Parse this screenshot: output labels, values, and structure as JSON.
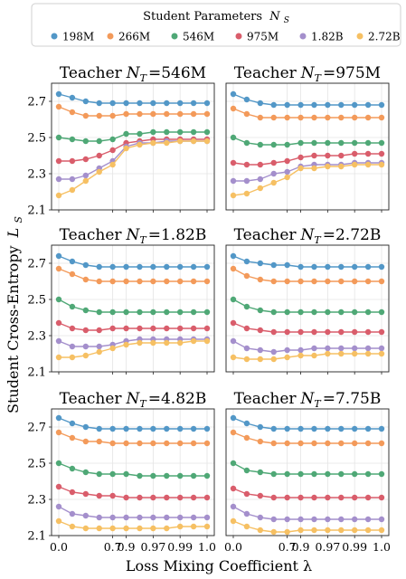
{
  "legend": {
    "title_prefix": "Student Parameters",
    "title_symbol": "N",
    "title_sub": "S",
    "placement": "top-center"
  },
  "ylabel_prefix": "Student Cross-Entropy",
  "ylabel_symbol": "L",
  "ylabel_sub": "S",
  "xlabel": "Loss Mixing Coefficient λ",
  "chart_data": {
    "type": "line",
    "grid": true,
    "x_categories": [
      "0.0",
      "0.1",
      "0.3",
      "0.5",
      "0.7",
      "0.9",
      "0.95",
      "0.97",
      "0.98",
      "0.99",
      "0.999",
      "1.0"
    ],
    "x_tick_labels": [
      "0.0",
      "0.7",
      "0.9",
      "0.97",
      "0.99",
      "1.0"
    ],
    "x_tick_indices": [
      0,
      4,
      5,
      7,
      9,
      11
    ],
    "ylim": [
      2.1,
      2.8
    ],
    "yticks": [
      "2.1",
      "2.3",
      "2.5",
      "2.7"
    ],
    "series_names": [
      "198M",
      "266M",
      "546M",
      "975M",
      "1.82B",
      "2.72B"
    ],
    "series_colors": [
      "#5297c7",
      "#f39a5a",
      "#4fa876",
      "#d95d6b",
      "#a48fcc",
      "#f6c063"
    ],
    "panels": [
      {
        "title_prefix": "Teacher",
        "title_symbol": "N",
        "title_sub": "T",
        "title_value": "=546M",
        "series": [
          [
            2.74,
            2.72,
            2.7,
            2.69,
            2.69,
            2.69,
            2.69,
            2.69,
            2.69,
            2.69,
            2.69,
            2.69
          ],
          [
            2.67,
            2.64,
            2.62,
            2.62,
            2.62,
            2.63,
            2.63,
            2.63,
            2.63,
            2.63,
            2.63,
            2.63
          ],
          [
            2.5,
            2.49,
            2.48,
            2.48,
            2.49,
            2.52,
            2.52,
            2.53,
            2.53,
            2.53,
            2.53,
            2.53
          ],
          [
            2.37,
            2.37,
            2.38,
            2.4,
            2.43,
            2.47,
            2.48,
            2.49,
            2.49,
            2.49,
            2.49,
            2.49
          ],
          [
            2.27,
            2.27,
            2.29,
            2.33,
            2.37,
            2.45,
            2.47,
            2.47,
            2.48,
            2.48,
            2.48,
            2.48
          ],
          [
            2.18,
            2.21,
            2.26,
            2.31,
            2.35,
            2.44,
            2.46,
            2.47,
            2.47,
            2.48,
            2.48,
            2.48
          ]
        ]
      },
      {
        "title_prefix": "Teacher",
        "title_symbol": "N",
        "title_sub": "T",
        "title_value": "=975M",
        "series": [
          [
            2.74,
            2.71,
            2.69,
            2.68,
            2.68,
            2.68,
            2.68,
            2.68,
            2.68,
            2.68,
            2.68,
            2.68
          ],
          [
            2.66,
            2.63,
            2.61,
            2.61,
            2.61,
            2.61,
            2.61,
            2.61,
            2.61,
            2.61,
            2.61,
            2.61
          ],
          [
            2.5,
            2.47,
            2.46,
            2.46,
            2.46,
            2.47,
            2.47,
            2.47,
            2.47,
            2.47,
            2.47,
            2.47
          ],
          [
            2.36,
            2.35,
            2.35,
            2.36,
            2.37,
            2.39,
            2.4,
            2.4,
            2.4,
            2.41,
            2.41,
            2.41
          ],
          [
            2.26,
            2.26,
            2.27,
            2.3,
            2.31,
            2.34,
            2.35,
            2.35,
            2.35,
            2.36,
            2.36,
            2.36
          ],
          [
            2.18,
            2.19,
            2.22,
            2.25,
            2.28,
            2.33,
            2.33,
            2.34,
            2.34,
            2.35,
            2.35,
            2.35
          ]
        ]
      },
      {
        "title_prefix": "Teacher",
        "title_symbol": "N",
        "title_sub": "T",
        "title_value": "=1.82B",
        "series": [
          [
            2.74,
            2.71,
            2.69,
            2.68,
            2.68,
            2.68,
            2.68,
            2.68,
            2.68,
            2.68,
            2.68,
            2.68
          ],
          [
            2.67,
            2.64,
            2.61,
            2.6,
            2.6,
            2.6,
            2.6,
            2.6,
            2.6,
            2.6,
            2.6,
            2.6
          ],
          [
            2.5,
            2.46,
            2.44,
            2.43,
            2.43,
            2.43,
            2.43,
            2.43,
            2.43,
            2.43,
            2.43,
            2.43
          ],
          [
            2.37,
            2.34,
            2.33,
            2.33,
            2.34,
            2.34,
            2.34,
            2.34,
            2.34,
            2.34,
            2.34,
            2.34
          ],
          [
            2.27,
            2.24,
            2.24,
            2.24,
            2.25,
            2.27,
            2.28,
            2.28,
            2.28,
            2.28,
            2.28,
            2.28
          ],
          [
            2.18,
            2.18,
            2.19,
            2.21,
            2.23,
            2.25,
            2.26,
            2.26,
            2.26,
            2.26,
            2.27,
            2.27
          ]
        ]
      },
      {
        "title_prefix": "Teacher",
        "title_symbol": "N",
        "title_sub": "T",
        "title_value": "=2.72B",
        "series": [
          [
            2.74,
            2.71,
            2.7,
            2.69,
            2.69,
            2.68,
            2.68,
            2.68,
            2.68,
            2.68,
            2.68,
            2.68
          ],
          [
            2.67,
            2.63,
            2.61,
            2.6,
            2.6,
            2.6,
            2.6,
            2.6,
            2.6,
            2.6,
            2.6,
            2.6
          ],
          [
            2.5,
            2.46,
            2.44,
            2.43,
            2.43,
            2.43,
            2.43,
            2.43,
            2.43,
            2.43,
            2.43,
            2.43
          ],
          [
            2.37,
            2.34,
            2.33,
            2.32,
            2.32,
            2.32,
            2.32,
            2.32,
            2.32,
            2.32,
            2.32,
            2.32
          ],
          [
            2.27,
            2.23,
            2.22,
            2.21,
            2.22,
            2.22,
            2.23,
            2.23,
            2.23,
            2.23,
            2.23,
            2.23
          ],
          [
            2.18,
            2.17,
            2.17,
            2.17,
            2.18,
            2.19,
            2.19,
            2.2,
            2.2,
            2.2,
            2.2,
            2.2
          ]
        ]
      },
      {
        "title_prefix": "Teacher",
        "title_symbol": "N",
        "title_sub": "T",
        "title_value": "=4.82B",
        "series": [
          [
            2.75,
            2.72,
            2.7,
            2.69,
            2.69,
            2.69,
            2.69,
            2.69,
            2.69,
            2.69,
            2.69,
            2.69
          ],
          [
            2.67,
            2.64,
            2.62,
            2.62,
            2.61,
            2.61,
            2.61,
            2.61,
            2.61,
            2.61,
            2.61,
            2.61
          ],
          [
            2.5,
            2.47,
            2.45,
            2.44,
            2.44,
            2.44,
            2.43,
            2.43,
            2.43,
            2.43,
            2.43,
            2.43
          ],
          [
            2.37,
            2.34,
            2.33,
            2.32,
            2.32,
            2.31,
            2.31,
            2.31,
            2.31,
            2.31,
            2.31,
            2.31
          ],
          [
            2.26,
            2.22,
            2.21,
            2.2,
            2.2,
            2.2,
            2.2,
            2.2,
            2.2,
            2.2,
            2.2,
            2.2
          ],
          [
            2.18,
            2.15,
            2.14,
            2.14,
            2.14,
            2.14,
            2.14,
            2.14,
            2.14,
            2.15,
            2.15,
            2.15
          ]
        ]
      },
      {
        "title_prefix": "Teacher",
        "title_symbol": "N",
        "title_sub": "T",
        "title_value": "=7.75B",
        "series": [
          [
            2.75,
            2.72,
            2.7,
            2.69,
            2.69,
            2.69,
            2.69,
            2.69,
            2.69,
            2.69,
            2.69,
            2.69
          ],
          [
            2.67,
            2.64,
            2.62,
            2.61,
            2.61,
            2.61,
            2.61,
            2.61,
            2.61,
            2.61,
            2.61,
            2.61
          ],
          [
            2.5,
            2.46,
            2.45,
            2.44,
            2.44,
            2.44,
            2.44,
            2.44,
            2.44,
            2.44,
            2.44,
            2.44
          ],
          [
            2.36,
            2.33,
            2.32,
            2.31,
            2.31,
            2.31,
            2.31,
            2.31,
            2.31,
            2.31,
            2.31,
            2.31
          ],
          [
            2.26,
            2.22,
            2.2,
            2.19,
            2.19,
            2.19,
            2.19,
            2.19,
            2.19,
            2.19,
            2.19,
            2.19
          ],
          [
            2.18,
            2.15,
            2.13,
            2.12,
            2.12,
            2.13,
            2.13,
            2.13,
            2.13,
            2.13,
            2.13,
            2.13
          ]
        ]
      }
    ]
  }
}
